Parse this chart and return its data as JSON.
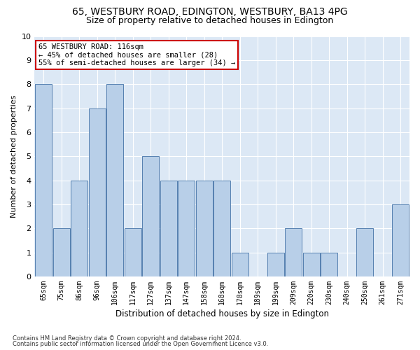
{
  "title1": "65, WESTBURY ROAD, EDINGTON, WESTBURY, BA13 4PG",
  "title2": "Size of property relative to detached houses in Edington",
  "xlabel": "Distribution of detached houses by size in Edington",
  "ylabel": "Number of detached properties",
  "footnote1": "Contains HM Land Registry data © Crown copyright and database right 2024.",
  "footnote2": "Contains public sector information licensed under the Open Government Licence v3.0.",
  "bins": [
    "65sqm",
    "75sqm",
    "86sqm",
    "96sqm",
    "106sqm",
    "117sqm",
    "127sqm",
    "137sqm",
    "147sqm",
    "158sqm",
    "168sqm",
    "178sqm",
    "189sqm",
    "199sqm",
    "209sqm",
    "220sqm",
    "230sqm",
    "240sqm",
    "250sqm",
    "261sqm",
    "271sqm"
  ],
  "values": [
    8,
    2,
    4,
    7,
    8,
    2,
    5,
    4,
    4,
    4,
    4,
    1,
    0,
    1,
    2,
    1,
    1,
    0,
    2,
    0,
    3
  ],
  "highlight_bin_index": 4,
  "bar_color": "#b8cfe8",
  "bar_edge_color": "#5580b0",
  "annotation_text": "65 WESTBURY ROAD: 116sqm\n← 45% of detached houses are smaller (28)\n55% of semi-detached houses are larger (34) →",
  "annotation_box_facecolor": "white",
  "annotation_box_edgecolor": "#cc0000",
  "ylim": [
    0,
    10
  ],
  "yticks": [
    0,
    1,
    2,
    3,
    4,
    5,
    6,
    7,
    8,
    9,
    10
  ],
  "background_color": "#dce8f5",
  "grid_color": "white",
  "title1_fontsize": 10,
  "title2_fontsize": 9,
  "xlabel_fontsize": 8.5,
  "ylabel_fontsize": 8,
  "tick_fontsize": 7,
  "annot_fontsize": 7.5,
  "footnote_fontsize": 6
}
